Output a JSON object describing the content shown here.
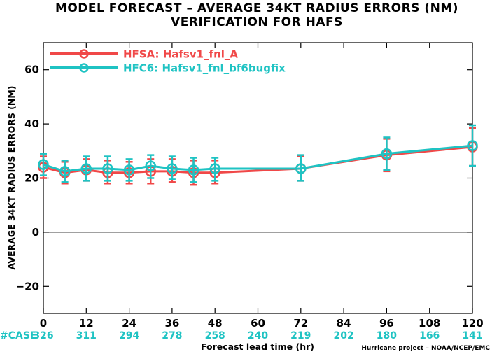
{
  "chart_data": {
    "type": "line",
    "title": "MODEL FORECAST – AVERAGE 34KT RADIUS ERRORS (NM)",
    "subtitle": "VERIFICATION FOR HAFS",
    "xlabel": "Forecast lead time (hr)",
    "ylabel": "AVERAGE 34KT RADIUS ERRORS (NM)",
    "xlim": [
      0,
      120
    ],
    "ylim": [
      -30,
      70
    ],
    "x_ticks": [
      0,
      12,
      24,
      36,
      48,
      60,
      72,
      84,
      96,
      108,
      120
    ],
    "y_ticks": [
      -20,
      0,
      20,
      40,
      60
    ],
    "zero_line": true,
    "grid": false,
    "legend_position": "top-left",
    "case_label": "#CASE",
    "case_counts": [
      {
        "x": 0,
        "n": "326"
      },
      {
        "x": 12,
        "n": "311"
      },
      {
        "x": 24,
        "n": "294"
      },
      {
        "x": 36,
        "n": "278"
      },
      {
        "x": 48,
        "n": "258"
      },
      {
        "x": 60,
        "n": "240"
      },
      {
        "x": 72,
        "n": "219"
      },
      {
        "x": 84,
        "n": "202"
      },
      {
        "x": 96,
        "n": "180"
      },
      {
        "x": 108,
        "n": "166"
      },
      {
        "x": 120,
        "n": "141"
      }
    ],
    "credit": "Hurricane project – NOAA/NCEP/EMC",
    "series": [
      {
        "name": "HFSA: Hafsv1_fnl_A",
        "color": "#f04848",
        "points": [
          {
            "x": 0,
            "y": 24.0,
            "lo": 20.0,
            "hi": 28.0
          },
          {
            "x": 6,
            "y": 22.0,
            "lo": 18.0,
            "hi": 26.0
          },
          {
            "x": 12,
            "y": 23.0,
            "lo": 19.0,
            "hi": 27.0
          },
          {
            "x": 18,
            "y": 22.0,
            "lo": 18.0,
            "hi": 26.5
          },
          {
            "x": 24,
            "y": 22.0,
            "lo": 18.0,
            "hi": 26.0
          },
          {
            "x": 30,
            "y": 22.5,
            "lo": 18.0,
            "hi": 27.0
          },
          {
            "x": 36,
            "y": 22.5,
            "lo": 18.5,
            "hi": 27.0
          },
          {
            "x": 42,
            "y": 22.0,
            "lo": 17.5,
            "hi": 26.5
          },
          {
            "x": 48,
            "y": 22.0,
            "lo": 18.0,
            "hi": 26.5
          },
          {
            "x": 72,
            "y": 23.5,
            "lo": 19.0,
            "hi": 28.0
          },
          {
            "x": 96,
            "y": 28.5,
            "lo": 22.5,
            "hi": 34.5
          },
          {
            "x": 120,
            "y": 31.5,
            "lo": 24.5,
            "hi": 38.5
          }
        ]
      },
      {
        "name": "HFC6: Hafsv1_fnl_bf6bugfix",
        "color": "#1fc3c3",
        "points": [
          {
            "x": 0,
            "y": 25.0,
            "lo": 21.0,
            "hi": 29.0
          },
          {
            "x": 6,
            "y": 22.5,
            "lo": 18.5,
            "hi": 26.5
          },
          {
            "x": 12,
            "y": 23.5,
            "lo": 19.0,
            "hi": 28.0
          },
          {
            "x": 18,
            "y": 23.5,
            "lo": 19.0,
            "hi": 28.0
          },
          {
            "x": 24,
            "y": 23.0,
            "lo": 19.0,
            "hi": 27.0
          },
          {
            "x": 30,
            "y": 24.5,
            "lo": 20.0,
            "hi": 28.5
          },
          {
            "x": 36,
            "y": 23.5,
            "lo": 19.5,
            "hi": 28.0
          },
          {
            "x": 42,
            "y": 23.0,
            "lo": 18.5,
            "hi": 27.5
          },
          {
            "x": 48,
            "y": 23.5,
            "lo": 19.0,
            "hi": 27.5
          },
          {
            "x": 72,
            "y": 23.5,
            "lo": 19.0,
            "hi": 28.5
          },
          {
            "x": 96,
            "y": 29.0,
            "lo": 23.0,
            "hi": 35.0
          },
          {
            "x": 120,
            "y": 32.0,
            "lo": 24.5,
            "hi": 39.5
          }
        ]
      }
    ]
  }
}
